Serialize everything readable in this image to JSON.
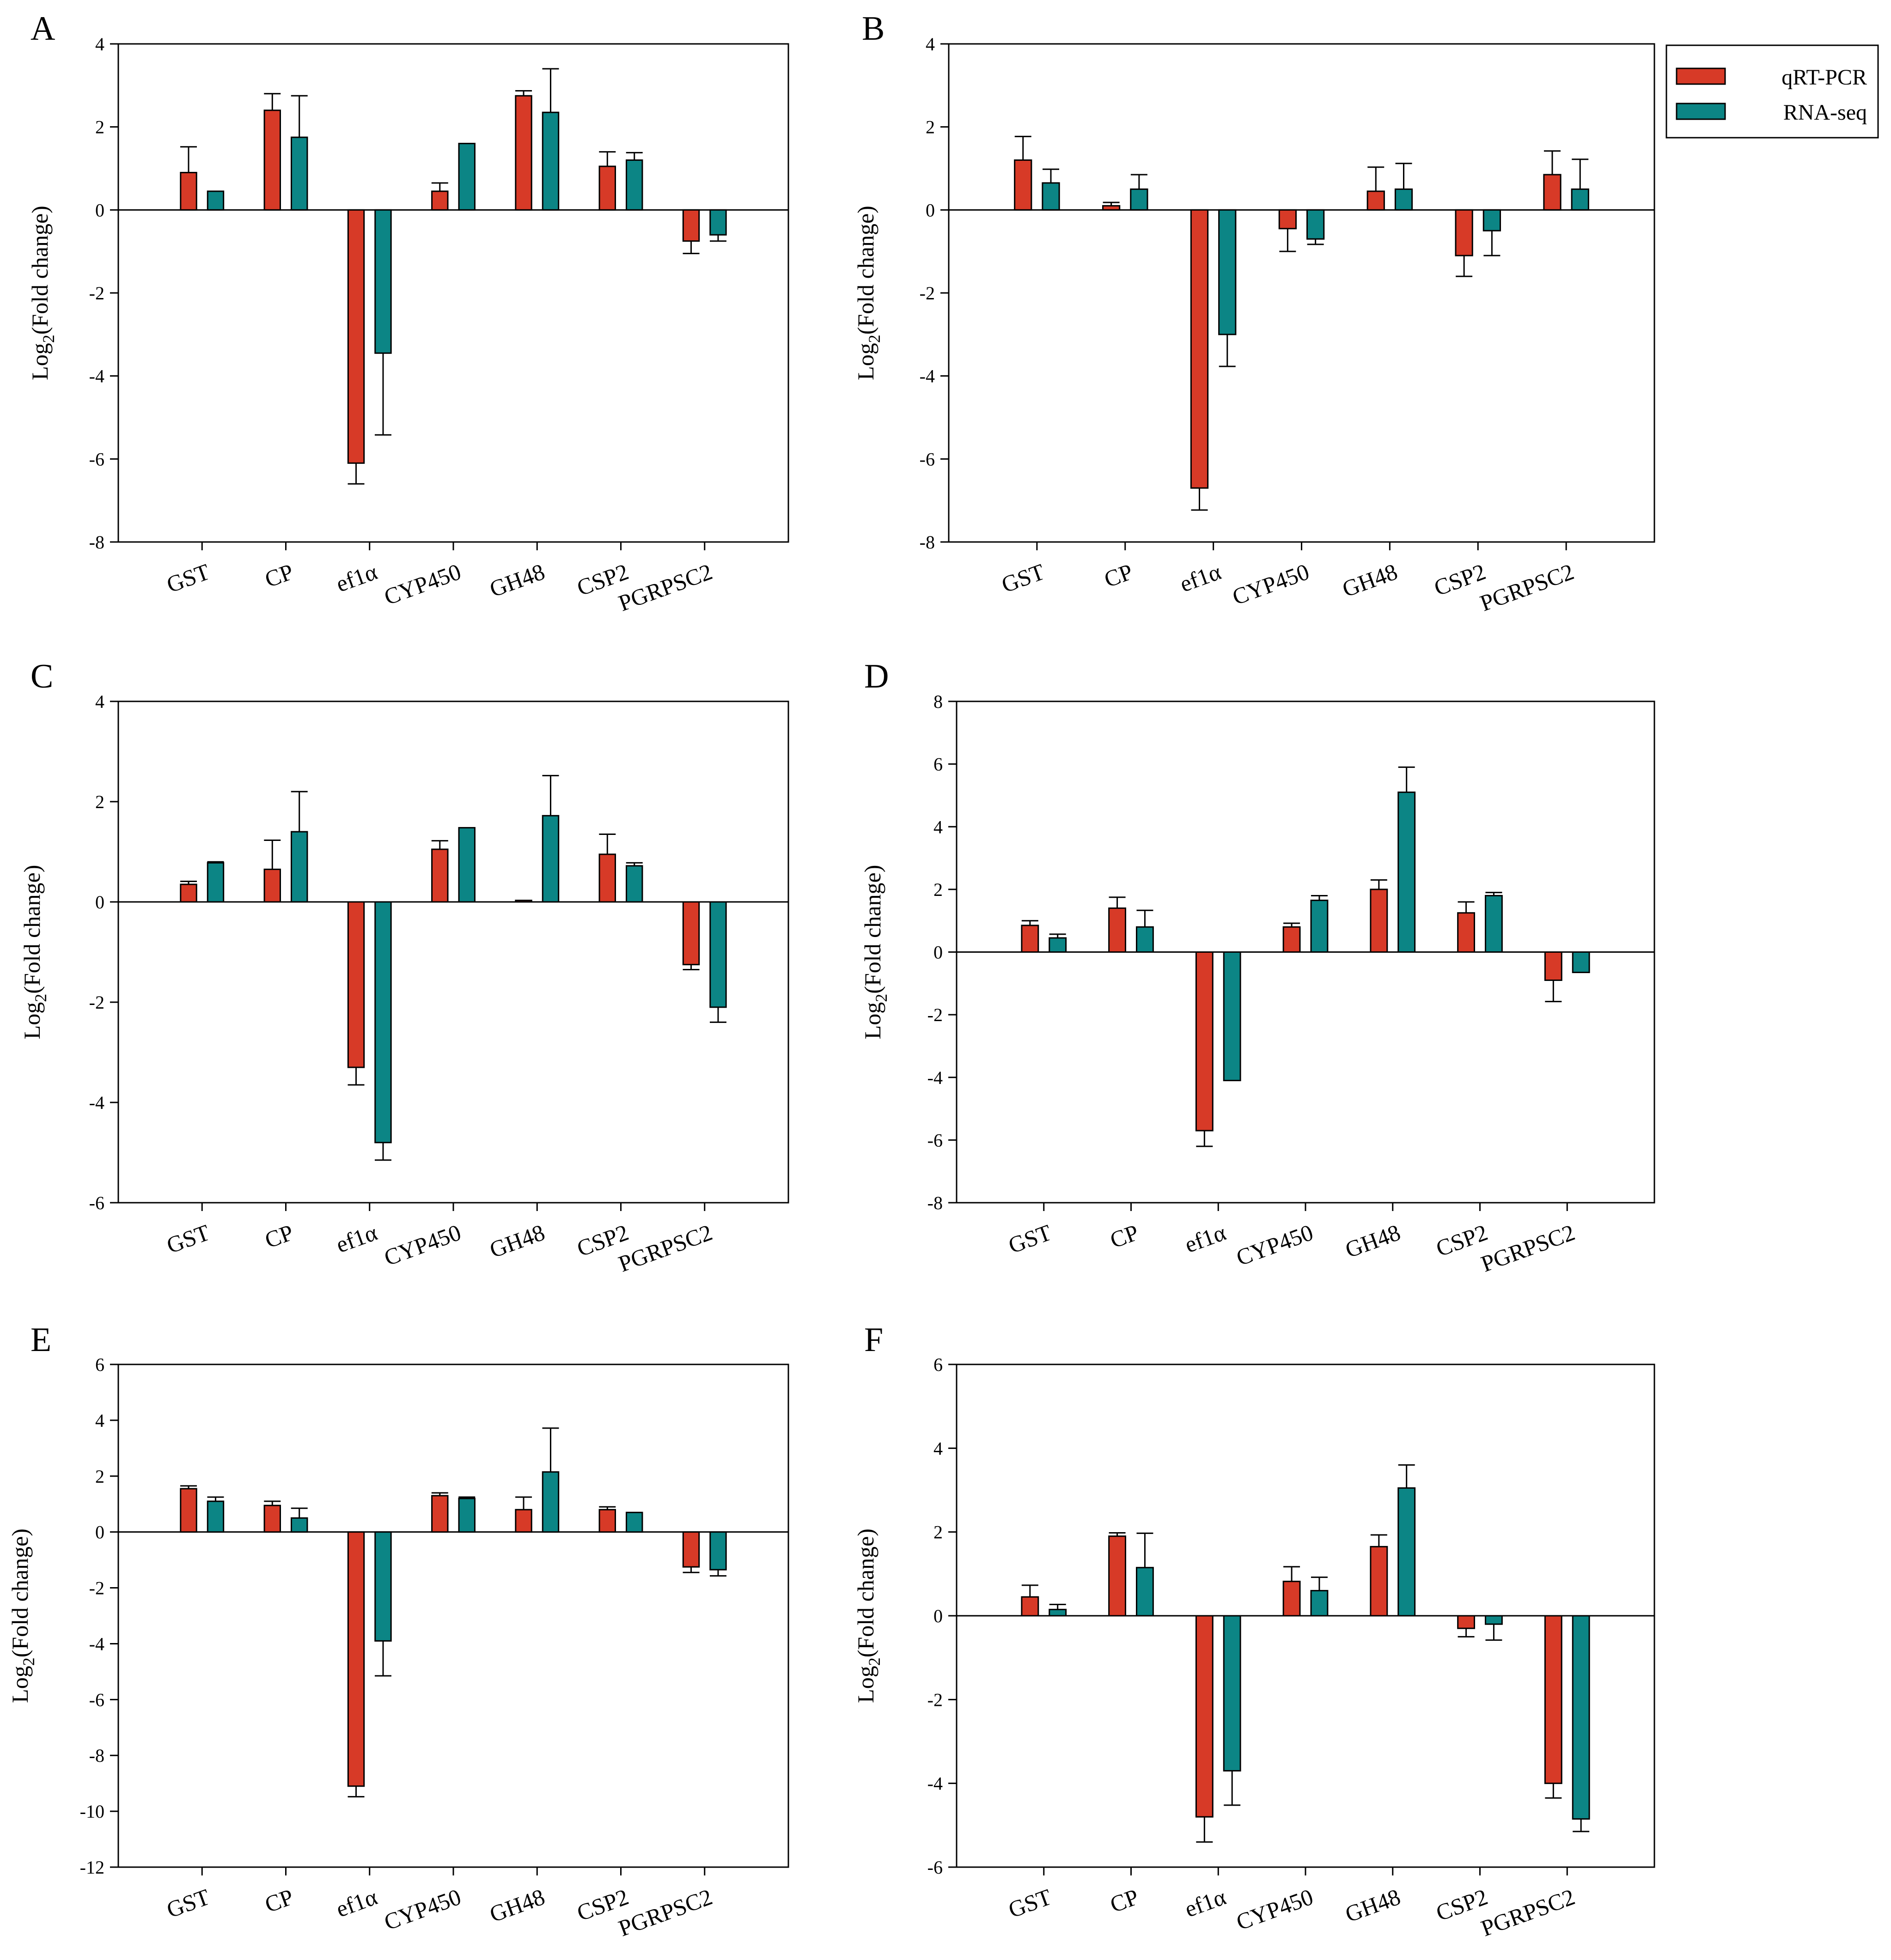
{
  "legend": {
    "position": "top-right",
    "items": [
      {
        "label": "qRT-PCR",
        "color": "#d73a27"
      },
      {
        "label": "RNA-seq",
        "color": "#0c8585"
      }
    ]
  },
  "chart_data": [
    {
      "panel": "A",
      "type": "bar",
      "ylabel": "Log2(Fold change)",
      "ylim": [
        -8,
        4
      ],
      "yticks": [
        -8,
        -6,
        -4,
        -2,
        0,
        2,
        4
      ],
      "categories": [
        "GST",
        "CP",
        "ef1α",
        "CYP450",
        "GH48",
        "CSP2",
        "PGRPSC2"
      ],
      "series": [
        {
          "name": "qRT-PCR",
          "values": [
            0.9,
            2.4,
            -6.1,
            0.45,
            2.75,
            1.05,
            -0.75
          ],
          "errors": [
            0.62,
            0.4,
            0.5,
            0.2,
            0.12,
            0.35,
            0.3
          ]
        },
        {
          "name": "RNA-seq",
          "values": [
            0.45,
            1.75,
            -3.45,
            1.6,
            2.35,
            1.2,
            -0.6
          ],
          "errors": [
            0,
            1.0,
            1.97,
            0,
            1.05,
            0.18,
            0.15
          ]
        }
      ]
    },
    {
      "panel": "B",
      "type": "bar",
      "ylabel": "Log2(Fold change)",
      "ylim": [
        -8,
        4
      ],
      "yticks": [
        -8,
        -6,
        -4,
        -2,
        0,
        2,
        4
      ],
      "categories": [
        "GST",
        "CP",
        "ef1α",
        "CYP450",
        "GH48",
        "CSP2",
        "PGRPSC2"
      ],
      "series": [
        {
          "name": "qRT-PCR",
          "values": [
            1.2,
            0.1,
            -6.7,
            -0.45,
            0.45,
            -1.1,
            0.85
          ],
          "errors": [
            0.57,
            0.08,
            0.53,
            0.55,
            0.58,
            0.5,
            0.57
          ]
        },
        {
          "name": "RNA-seq",
          "values": [
            0.65,
            0.5,
            -3.0,
            -0.7,
            0.5,
            -0.5,
            0.5
          ],
          "errors": [
            0.33,
            0.35,
            0.77,
            0.13,
            0.62,
            0.6,
            0.72
          ]
        }
      ]
    },
    {
      "panel": "C",
      "type": "bar",
      "ylabel": "Log2(Fold change)",
      "ylim": [
        -6,
        4
      ],
      "yticks": [
        -6,
        -4,
        -2,
        0,
        2,
        4
      ],
      "categories": [
        "GST",
        "CP",
        "ef1α",
        "CYP450",
        "GH48",
        "CSP2",
        "PGRPSC2"
      ],
      "series": [
        {
          "name": "qRT-PCR",
          "values": [
            0.35,
            0.65,
            -3.3,
            1.05,
            0.03,
            0.95,
            -1.25
          ],
          "errors": [
            0.06,
            0.58,
            0.35,
            0.17,
            0,
            0.4,
            0.1
          ]
        },
        {
          "name": "RNA-seq",
          "values": [
            0.78,
            1.4,
            -4.8,
            1.48,
            1.72,
            0.72,
            -2.1
          ],
          "errors": [
            0.02,
            0.8,
            0.35,
            0,
            0.8,
            0.06,
            0.3
          ]
        }
      ]
    },
    {
      "panel": "D",
      "type": "bar",
      "ylabel": "Log2(Fold change)",
      "ylim": [
        -8,
        8
      ],
      "yticks": [
        -8,
        -6,
        -4,
        -2,
        0,
        2,
        4,
        6,
        8
      ],
      "categories": [
        "GST",
        "CP",
        "ef1α",
        "CYP450",
        "GH48",
        "CSP2",
        "PGRPSC2"
      ],
      "series": [
        {
          "name": "qRT-PCR",
          "values": [
            0.85,
            1.4,
            -5.7,
            0.8,
            2.0,
            1.25,
            -0.9
          ],
          "errors": [
            0.15,
            0.35,
            0.5,
            0.12,
            0.3,
            0.35,
            0.68
          ]
        },
        {
          "name": "RNA-seq",
          "values": [
            0.45,
            0.8,
            -4.1,
            1.65,
            5.1,
            1.8,
            -0.65
          ],
          "errors": [
            0.12,
            0.53,
            0,
            0.15,
            0.8,
            0.1,
            0
          ]
        }
      ]
    },
    {
      "panel": "E",
      "type": "bar",
      "ylabel": "Log2(Fold change)",
      "ylim": [
        -12,
        6
      ],
      "yticks": [
        -12,
        -10,
        -8,
        -6,
        -4,
        -2,
        0,
        2,
        4,
        6
      ],
      "categories": [
        "GST",
        "CP",
        "ef1α",
        "CYP450",
        "GH48",
        "CSP2",
        "PGRPSC2"
      ],
      "series": [
        {
          "name": "qRT-PCR",
          "values": [
            1.55,
            0.95,
            -9.1,
            1.3,
            0.8,
            0.8,
            -1.25
          ],
          "errors": [
            0.1,
            0.15,
            0.38,
            0.1,
            0.45,
            0.1,
            0.2
          ]
        },
        {
          "name": "RNA-seq",
          "values": [
            1.1,
            0.5,
            -3.9,
            1.2,
            2.15,
            0.7,
            -1.35
          ],
          "errors": [
            0.15,
            0.35,
            1.25,
            0.05,
            1.57,
            0,
            0.22
          ]
        }
      ]
    },
    {
      "panel": "F",
      "type": "bar",
      "ylabel": "Log2(Fold change)",
      "ylim": [
        -6,
        6
      ],
      "yticks": [
        -6,
        -4,
        -2,
        0,
        2,
        4,
        6
      ],
      "categories": [
        "GST",
        "CP",
        "ef1α",
        "CYP450",
        "GH48",
        "CSP2",
        "PGRPSC2"
      ],
      "series": [
        {
          "name": "qRT-PCR",
          "values": [
            0.45,
            1.9,
            -4.8,
            0.82,
            1.65,
            -0.3,
            -4.0
          ],
          "errors": [
            0.28,
            0.08,
            0.6,
            0.35,
            0.28,
            0.2,
            0.35
          ]
        },
        {
          "name": "RNA-seq",
          "values": [
            0.15,
            1.15,
            -3.7,
            0.6,
            3.05,
            -0.2,
            -4.85
          ],
          "errors": [
            0.12,
            0.82,
            0.82,
            0.32,
            0.55,
            0.38,
            0.3
          ]
        }
      ]
    }
  ]
}
